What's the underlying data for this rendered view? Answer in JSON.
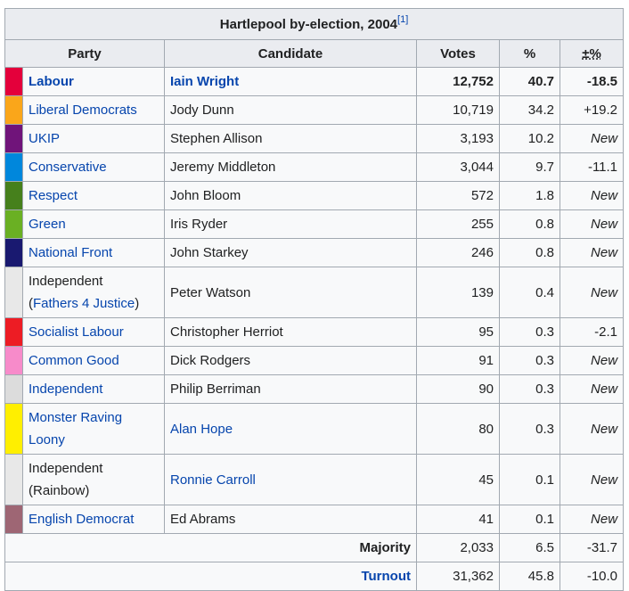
{
  "caption": {
    "title": "Hartlepool by-election, 2004",
    "ref": "[1]"
  },
  "columns": {
    "party": "Party",
    "candidate": "Candidate",
    "votes": "Votes",
    "pct": "%",
    "change": "±%"
  },
  "rows": [
    {
      "color": "#e4003b",
      "party": "Labour",
      "party_link": true,
      "candidate": "Iain Wright",
      "candidate_link": true,
      "votes": "12,752",
      "pct": "40.7",
      "change": "-18.5",
      "winner": true
    },
    {
      "color": "#faa61a",
      "party": "Liberal Democrats",
      "party_link": true,
      "candidate": "Jody Dunn",
      "candidate_link": false,
      "votes": "10,719",
      "pct": "34.2",
      "change": "+19.2"
    },
    {
      "color": "#70147a",
      "party": "UKIP",
      "party_link": true,
      "candidate": "Stephen Allison",
      "candidate_link": false,
      "votes": "3,193",
      "pct": "10.2",
      "change": "New"
    },
    {
      "color": "#0087dc",
      "party": "Conservative",
      "party_link": true,
      "candidate": "Jeremy Middleton",
      "candidate_link": false,
      "votes": "3,044",
      "pct": "9.7",
      "change": "-11.1"
    },
    {
      "color": "#46801c",
      "party": "Respect",
      "party_link": true,
      "candidate": "John Bloom",
      "candidate_link": false,
      "votes": "572",
      "pct": "1.8",
      "change": "New"
    },
    {
      "color": "#6ab023",
      "party": "Green",
      "party_link": true,
      "candidate": "Iris Ryder",
      "candidate_link": false,
      "votes": "255",
      "pct": "0.8",
      "change": "New"
    },
    {
      "color": "#191970",
      "party": "National Front",
      "party_link": true,
      "candidate": "John Starkey",
      "candidate_link": false,
      "votes": "246",
      "pct": "0.8",
      "change": "New"
    },
    {
      "color": "#e8e8e8",
      "party_prefix": "Independent",
      "party_open": "(",
      "party": "Fathers 4 Justice",
      "party_close": ")",
      "party_link": true,
      "candidate": "Peter Watson",
      "candidate_link": false,
      "votes": "139",
      "pct": "0.4",
      "change": "New",
      "tall": true
    },
    {
      "color": "#ed1c24",
      "party": "Socialist Labour",
      "party_link": true,
      "candidate": "Christopher Herriot",
      "candidate_link": false,
      "votes": "95",
      "pct": "0.3",
      "change": "-2.1"
    },
    {
      "color": "#f78bca",
      "party": "Common Good",
      "party_link": true,
      "candidate": "Dick Rodgers",
      "candidate_link": false,
      "votes": "91",
      "pct": "0.3",
      "change": "New"
    },
    {
      "color": "#dcdcdc",
      "party": "Independent",
      "party_link": true,
      "candidate": "Philip Berriman",
      "candidate_link": false,
      "votes": "90",
      "pct": "0.3",
      "change": "New"
    },
    {
      "color": "#ffef00",
      "party": "Monster Raving Loony",
      "party_link": true,
      "candidate": "Alan Hope",
      "candidate_link": true,
      "votes": "80",
      "pct": "0.3",
      "change": "New",
      "tall": true
    },
    {
      "color": "#e8e8e8",
      "party": "Independent (Rainbow)",
      "party_link": false,
      "candidate": "Ronnie Carroll",
      "candidate_link": true,
      "votes": "45",
      "pct": "0.1",
      "change": "New",
      "tall": true
    },
    {
      "color": "#9e6674",
      "party": "English Democrat",
      "party_link": true,
      "candidate": "Ed Abrams",
      "candidate_link": false,
      "votes": "41",
      "pct": "0.1",
      "change": "New"
    }
  ],
  "majority": {
    "label": "Majority",
    "votes": "2,033",
    "pct": "6.5",
    "change": "-31.7"
  },
  "turnout": {
    "label": "Turnout",
    "votes": "31,362",
    "pct": "45.8",
    "change": "-10.0"
  }
}
